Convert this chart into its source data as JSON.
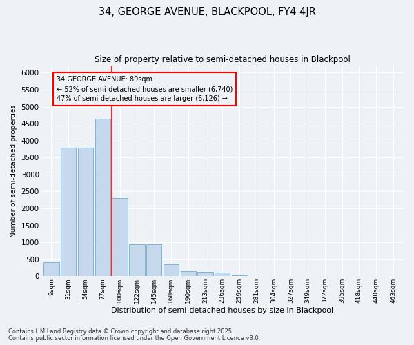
{
  "title1": "34, GEORGE AVENUE, BLACKPOOL, FY4 4JR",
  "title2": "Size of property relative to semi-detached houses in Blackpool",
  "xlabel": "Distribution of semi-detached houses by size in Blackpool",
  "ylabel": "Number of semi-detached properties",
  "bin_labels": [
    "9sqm",
    "31sqm",
    "54sqm",
    "77sqm",
    "100sqm",
    "122sqm",
    "145sqm",
    "168sqm",
    "190sqm",
    "213sqm",
    "236sqm",
    "259sqm",
    "281sqm",
    "304sqm",
    "327sqm",
    "349sqm",
    "372sqm",
    "395sqm",
    "418sqm",
    "440sqm",
    "463sqm"
  ],
  "bar_values": [
    420,
    3800,
    3800,
    4650,
    2300,
    950,
    950,
    350,
    150,
    120,
    100,
    30,
    5,
    0,
    0,
    0,
    0,
    0,
    0,
    0,
    0
  ],
  "bar_color": "#c5d8ec",
  "bar_edge_color": "#6aaed6",
  "vline_color": "red",
  "vline_pos": 3.55,
  "annotation_title": "34 GEORGE AVENUE: 89sqm",
  "annotation_line1": "← 52% of semi-detached houses are smaller (6,740)",
  "annotation_line2": "47% of semi-detached houses are larger (6,126) →",
  "annotation_box_color": "red",
  "ylim": [
    0,
    6200
  ],
  "yticks": [
    0,
    500,
    1000,
    1500,
    2000,
    2500,
    3000,
    3500,
    4000,
    4500,
    5000,
    5500,
    6000
  ],
  "footnote1": "Contains HM Land Registry data © Crown copyright and database right 2025.",
  "footnote2": "Contains public sector information licensed under the Open Government Licence v3.0.",
  "bg_color": "#eef2f7",
  "grid_color": "#ffffff"
}
